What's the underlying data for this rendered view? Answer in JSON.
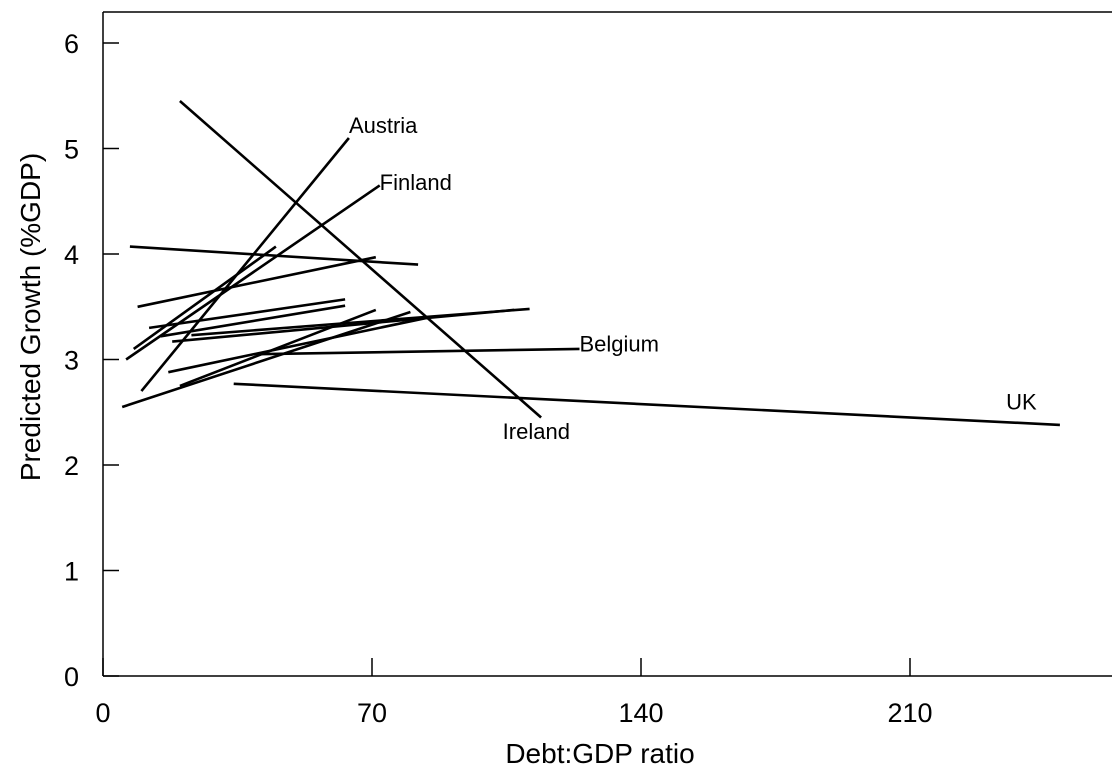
{
  "chart_data": {
    "type": "line",
    "title": "",
    "xlabel": "Debt:GDP ratio",
    "ylabel": "Predicted Growth (%GDP)",
    "xlim": [
      -2,
      262
    ],
    "ylim": [
      0,
      6.3
    ],
    "xticks": [
      0,
      70,
      140,
      210
    ],
    "yticks": [
      0,
      1,
      2,
      3,
      4,
      5,
      6
    ],
    "grid": false,
    "legend": "none",
    "series": [
      {
        "name": "Austria",
        "x": [
          10,
          64
        ],
        "y": [
          2.7,
          5.1
        ]
      },
      {
        "name": "Finland",
        "x": [
          6,
          72
        ],
        "y": [
          3.0,
          4.65
        ]
      },
      {
        "name": "Ireland",
        "x": [
          20,
          114
        ],
        "y": [
          5.45,
          2.45
        ]
      },
      {
        "name": "Belgium",
        "x": [
          40,
          124
        ],
        "y": [
          3.05,
          3.1
        ]
      },
      {
        "name": "UK",
        "x": [
          34,
          249
        ],
        "y": [
          2.77,
          2.38
        ]
      },
      {
        "x": [
          7,
          82
        ],
        "y": [
          4.07,
          3.9
        ]
      },
      {
        "x": [
          9,
          71
        ],
        "y": [
          3.5,
          3.97
        ]
      },
      {
        "x": [
          8,
          45
        ],
        "y": [
          3.1,
          4.07
        ]
      },
      {
        "x": [
          12,
          63
        ],
        "y": [
          3.3,
          3.57
        ]
      },
      {
        "x": [
          15,
          63
        ],
        "y": [
          3.22,
          3.51
        ]
      },
      {
        "x": [
          18,
          107
        ],
        "y": [
          3.17,
          3.47
        ]
      },
      {
        "x": [
          23,
          111
        ],
        "y": [
          3.23,
          3.48
        ]
      },
      {
        "x": [
          17,
          85
        ],
        "y": [
          2.88,
          3.4
        ]
      },
      {
        "x": [
          20,
          71
        ],
        "y": [
          2.75,
          3.47
        ]
      },
      {
        "x": [
          5,
          80
        ],
        "y": [
          2.55,
          3.45
        ]
      }
    ],
    "annotations": [
      {
        "text": "Austria",
        "x": 64,
        "y": 5.2
      },
      {
        "text": "Finland",
        "x": 72,
        "y": 4.66
      },
      {
        "text": "Ireland",
        "x": 104,
        "y": 2.3
      },
      {
        "text": "Belgium",
        "x": 124,
        "y": 3.13
      },
      {
        "text": "UK",
        "x": 235,
        "y": 2.58
      }
    ]
  }
}
